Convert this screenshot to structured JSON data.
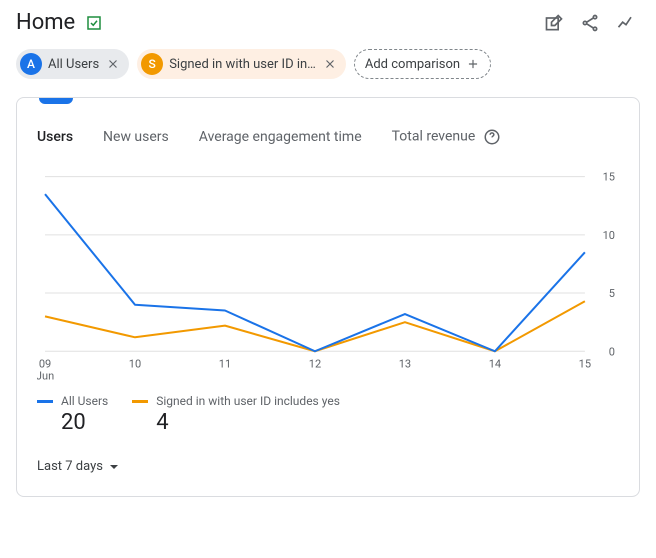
{
  "page": {
    "title": "Home"
  },
  "chips": {
    "a": {
      "badge": "A",
      "label": "All Users"
    },
    "b": {
      "badge": "S",
      "label": "Signed in with user ID in…"
    },
    "add": "Add comparison"
  },
  "metrics": {
    "m1": "Users",
    "m2": "New users",
    "m3": "Average engagement time",
    "m4": "Total revenue"
  },
  "chart": {
    "type": "line",
    "xlabels": [
      "09",
      "10",
      "11",
      "12",
      "13",
      "14",
      "15"
    ],
    "xsub": "Jun",
    "ylim": [
      0,
      15
    ],
    "yticks": [
      0,
      5,
      10,
      15
    ],
    "grid_color": "#e0e0e0",
    "axis_color": "#5f6368",
    "background": "#ffffff",
    "tick_fontsize": 11,
    "line_width": 2,
    "series": {
      "a": {
        "color": "#1a73e8",
        "values": [
          13.5,
          4.0,
          3.5,
          0.0,
          3.2,
          0.0,
          8.5
        ]
      },
      "b": {
        "color": "#f29900",
        "values": [
          3.0,
          1.2,
          2.2,
          0.0,
          2.5,
          0.0,
          4.3
        ]
      }
    }
  },
  "legend": {
    "a": {
      "label": "All Users",
      "value": "20",
      "color": "#1a73e8"
    },
    "b": {
      "label": "Signed in with user ID includes yes",
      "value": "4",
      "color": "#f29900"
    }
  },
  "period": "Last 7 days"
}
